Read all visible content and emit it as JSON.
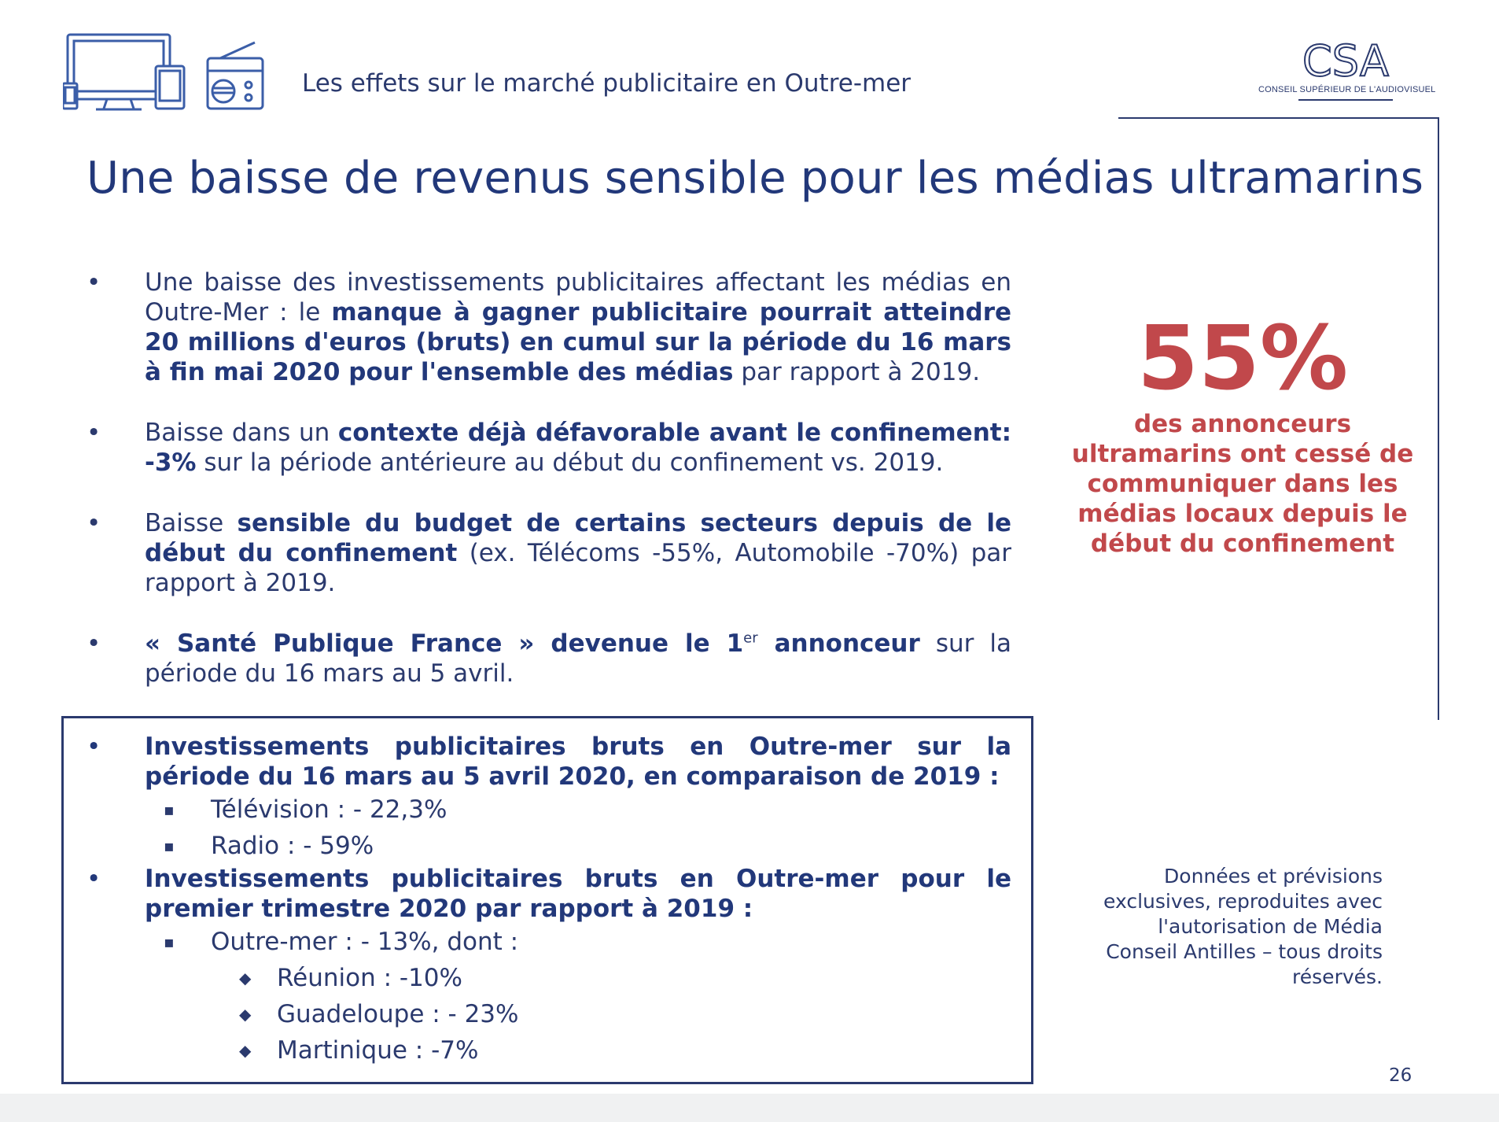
{
  "header": {
    "section_label": "Les effets sur le marché publicitaire en Outre-mer",
    "logo_text": "CSA",
    "logo_subtitle": "CONSEIL SUPÉRIEUR DE L'AUDIOVISUEL"
  },
  "title": "Une baisse de revenus sensible pour les médias ultramarins",
  "bullets": [
    {
      "p1": "Une baisse des investissements publicitaires affectant les médias en Outre-Mer : le ",
      "bold1": "manque à gagner publicitaire pourrait atteindre 20 millions d'euros (bruts) en cumul sur la période du 16 mars à fin mai 2020 pour l'ensemble des médias",
      "p2": " par rapport à 2019."
    },
    {
      "p1": "Baisse dans un ",
      "bold1": "contexte déjà défavorable avant le confinement: -3%",
      "p2": " sur la période antérieure au début du confinement vs. 2019."
    },
    {
      "p1": "Baisse ",
      "bold1": "sensible du budget de certains secteurs depuis de le début du confinement",
      "p2": " (ex. Télécoms -55%, Automobile -70%) par rapport à 2019."
    },
    {
      "bold1": "« Santé Publique France » devenue le 1",
      "sup": "er",
      "bold2": " annonceur",
      "p2": " sur la période du 16 mars au 5 avril."
    }
  ],
  "box": {
    "item1": {
      "label": "Investissements publicitaires bruts en Outre-mer sur la période du 16 mars au 5 avril 2020, en comparaison de 2019 :",
      "subs": [
        "Télévision : - 22,3%",
        "Radio : - 59%"
      ]
    },
    "item2": {
      "label": "Investissements publicitaires bruts en Outre-mer pour le premier trimestre 2020 par rapport à 2019 :",
      "sub": "Outre-mer : - 13%, dont :",
      "subsubs": [
        "Réunion : -10%",
        "Guadeloupe : - 23%",
        "Martinique : -7%"
      ]
    }
  },
  "stat": {
    "value": "55%",
    "text": "des annonceurs ultramarins ont cessé de communiquer dans les médias locaux depuis le début du confinement"
  },
  "source_note": "Données et prévisions exclusives, reproduites avec l'autorisation de Média Conseil Antilles – tous droits réservés.",
  "page_number": "26",
  "symbols": {
    "bullet": "•",
    "square": "▪",
    "diamond": "◆"
  },
  "colors": {
    "navy": "#2b3a6e",
    "title": "#22387a",
    "accent_red": "#c1484b"
  }
}
